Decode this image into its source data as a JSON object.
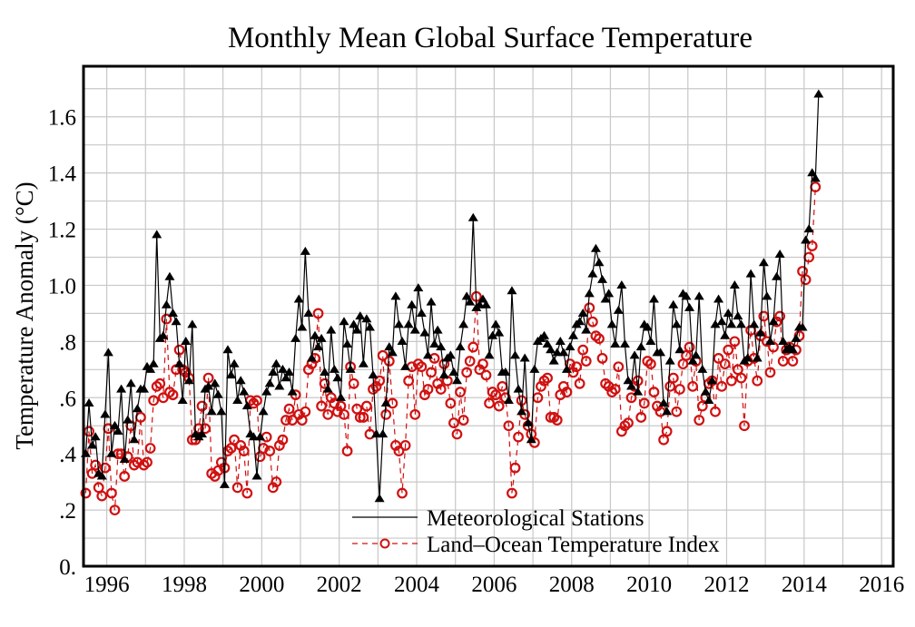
{
  "chart_data": {
    "type": "line",
    "title": "Monthly Mean Global Surface Temperature",
    "xlabel": "",
    "ylabel": "Temperature Anomaly (°C)",
    "xlim": [
      1995.4,
      2016.3
    ],
    "ylim": [
      0,
      1.78
    ],
    "grid": true,
    "legend_position": "bottom-center",
    "x_ticks": [
      1996,
      1998,
      2000,
      2002,
      2004,
      2006,
      2008,
      2010,
      2012,
      2014,
      2016
    ],
    "x_tick_labels": [
      "1996",
      "1998",
      "2000",
      "2002",
      "2004",
      "2006",
      "2008",
      "2010",
      "2012",
      "2014",
      "2016"
    ],
    "y_ticks": [
      0,
      0.2,
      0.4,
      0.6,
      0.8,
      1.0,
      1.2,
      1.4,
      1.6
    ],
    "y_tick_labels": [
      "0.",
      ".2",
      ".4",
      ".6",
      ".8",
      "1.0",
      "1.2",
      "1.4",
      "1.6"
    ],
    "x_start": 1995.458,
    "x_step_months": 1,
    "series": [
      {
        "name": "Meteorological Stations",
        "color": "#000000",
        "line_style": "solid",
        "marker": "triangle",
        "values": [
          0.4,
          0.58,
          0.43,
          0.46,
          0.33,
          0.32,
          0.54,
          0.76,
          0.4,
          0.5,
          0.48,
          0.63,
          0.38,
          0.52,
          0.65,
          0.45,
          0.56,
          0.63,
          0.63,
          0.71,
          0.7,
          0.72,
          1.18,
          0.81,
          0.82,
          0.93,
          1.03,
          0.9,
          0.87,
          0.72,
          0.59,
          0.8,
          0.66,
          0.86,
          0.47,
          0.46,
          0.47,
          0.63,
          0.64,
          0.55,
          0.65,
          0.61,
          0.55,
          0.29,
          0.77,
          0.68,
          0.72,
          0.59,
          0.66,
          0.62,
          0.57,
          0.47,
          0.46,
          0.32,
          0.46,
          0.55,
          0.62,
          0.65,
          0.69,
          0.72,
          0.64,
          0.7,
          0.67,
          0.69,
          0.62,
          0.81,
          0.95,
          0.85,
          1.12,
          0.9,
          0.74,
          0.82,
          0.78,
          0.81,
          0.69,
          0.63,
          0.84,
          0.7,
          0.67,
          0.6,
          0.87,
          0.79,
          0.7,
          0.86,
          0.84,
          0.89,
          0.72,
          0.88,
          0.85,
          0.68,
          0.47,
          0.24,
          0.47,
          0.58,
          0.78,
          0.76,
          0.96,
          0.86,
          0.8,
          0.71,
          0.86,
          0.93,
          0.84,
          0.99,
          0.9,
          0.83,
          0.75,
          0.94,
          0.79,
          0.84,
          0.78,
          0.68,
          0.74,
          0.75,
          0.69,
          0.66,
          0.78,
          0.86,
          0.96,
          0.94,
          1.24,
          0.92,
          0.93,
          0.95,
          0.93,
          0.75,
          0.82,
          0.86,
          0.83,
          0.69,
          0.69,
          0.59,
          0.98,
          0.75,
          0.63,
          0.55,
          0.74,
          0.51,
          0.45,
          0.7,
          0.8,
          0.81,
          0.82,
          0.79,
          0.77,
          0.73,
          0.76,
          0.8,
          0.76,
          0.7,
          0.78,
          0.82,
          0.86,
          0.87,
          0.9,
          0.84,
          0.97,
          1.04,
          1.13,
          1.08,
          1.02,
          0.95,
          0.97,
          0.86,
          0.79,
          0.91,
          1.0,
          0.79,
          0.66,
          0.64,
          0.75,
          0.62,
          0.78,
          0.86,
          0.85,
          0.8,
          0.95,
          0.76,
          0.76,
          0.58,
          0.55,
          0.73,
          0.93,
          0.86,
          0.77,
          0.97,
          0.96,
          0.92,
          0.73,
          0.75,
          0.96,
          0.7,
          0.62,
          0.59,
          0.66,
          0.86,
          0.95,
          0.87,
          0.82,
          0.9,
          0.86,
          1.0,
          0.89,
          0.86,
          0.73,
          0.74,
          1.04,
          0.86,
          0.74,
          0.83,
          1.08,
          0.96,
          0.8,
          0.87,
          1.03,
          1.11,
          0.8,
          0.77,
          0.78,
          0.77,
          0.81,
          0.85,
          0.85,
          1.16,
          1.2,
          1.4,
          1.38,
          1.68
        ]
      },
      {
        "name": "Land–Ocean Temperature Index",
        "color": "#d01010",
        "line_style": "dashed",
        "marker": "open-circle",
        "values": [
          0.26,
          0.48,
          0.33,
          0.36,
          0.28,
          0.25,
          0.35,
          0.49,
          0.26,
          0.2,
          0.4,
          0.4,
          0.32,
          0.39,
          0.5,
          0.36,
          0.37,
          0.53,
          0.36,
          0.37,
          0.42,
          0.59,
          0.64,
          0.65,
          0.6,
          0.88,
          0.62,
          0.61,
          0.7,
          0.77,
          0.7,
          0.69,
          0.67,
          0.45,
          0.45,
          0.49,
          0.57,
          0.49,
          0.67,
          0.33,
          0.32,
          0.34,
          0.37,
          0.35,
          0.41,
          0.42,
          0.45,
          0.28,
          0.43,
          0.41,
          0.26,
          0.59,
          0.58,
          0.59,
          0.39,
          0.42,
          0.46,
          0.41,
          0.28,
          0.3,
          0.43,
          0.45,
          0.52,
          0.56,
          0.52,
          0.61,
          0.54,
          0.52,
          0.55,
          0.7,
          0.72,
          0.74,
          0.9,
          0.57,
          0.65,
          0.54,
          0.6,
          0.58,
          0.55,
          0.57,
          0.54,
          0.41,
          0.71,
          0.65,
          0.56,
          0.53,
          0.53,
          0.57,
          0.47,
          0.63,
          0.64,
          0.66,
          0.75,
          0.54,
          0.73,
          0.58,
          0.43,
          0.41,
          0.26,
          0.43,
          0.66,
          0.71,
          0.54,
          0.72,
          0.71,
          0.61,
          0.63,
          0.69,
          0.74,
          0.65,
          0.63,
          0.72,
          0.66,
          0.58,
          0.51,
          0.47,
          0.62,
          0.52,
          0.69,
          0.73,
          0.78,
          0.96,
          0.7,
          0.72,
          0.68,
          0.58,
          0.62,
          0.61,
          0.57,
          0.64,
          0.6,
          0.5,
          0.26,
          0.35,
          0.46,
          0.59,
          0.54,
          0.5,
          0.47,
          0.44,
          0.6,
          0.64,
          0.66,
          0.67,
          0.53,
          0.53,
          0.52,
          0.61,
          0.64,
          0.62,
          0.72,
          0.69,
          0.71,
          0.65,
          0.77,
          0.73,
          0.92,
          0.87,
          0.82,
          0.81,
          0.74,
          0.65,
          0.64,
          0.62,
          0.63,
          0.71,
          0.48,
          0.5,
          0.51,
          0.6,
          0.64,
          0.66,
          0.53,
          0.58,
          0.73,
          0.72,
          0.62,
          0.57,
          0.55,
          0.45,
          0.48,
          0.64,
          0.67,
          0.55,
          0.63,
          0.72,
          0.75,
          0.78,
          0.64,
          0.73,
          0.52,
          0.57,
          0.6,
          0.65,
          0.66,
          0.55,
          0.74,
          0.64,
          0.72,
          0.77,
          0.66,
          0.8,
          0.7,
          0.67,
          0.5,
          0.73,
          0.84,
          0.74,
          0.66,
          0.82,
          0.89,
          0.8,
          0.69,
          0.78,
          0.87,
          0.89,
          0.73,
          0.77,
          0.78,
          0.73,
          0.77,
          0.82,
          1.05,
          1.02,
          1.1,
          1.14,
          1.35
        ]
      }
    ]
  }
}
